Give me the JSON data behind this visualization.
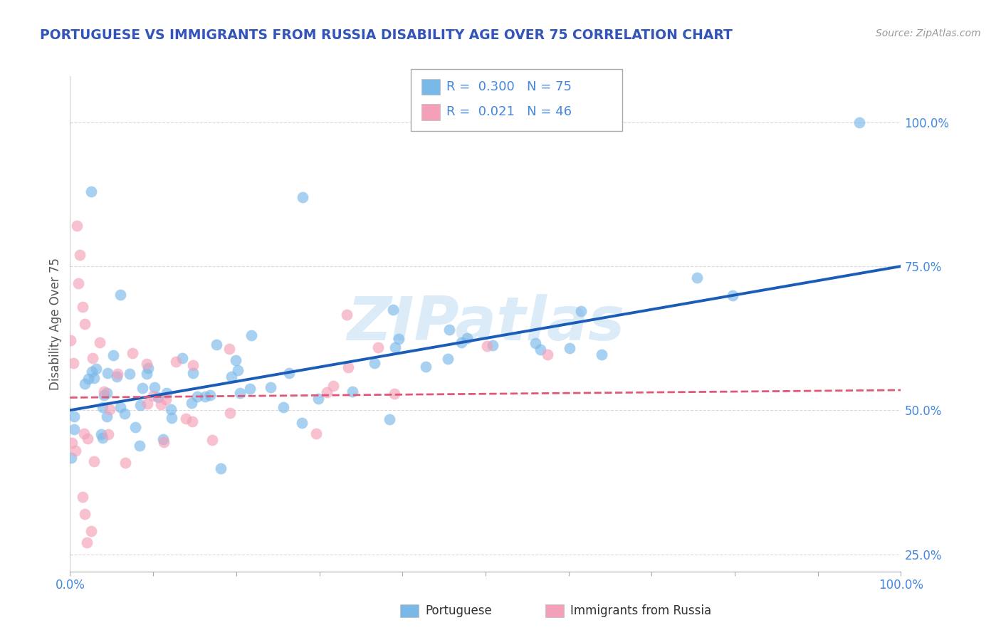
{
  "title": "PORTUGUESE VS IMMIGRANTS FROM RUSSIA DISABILITY AGE OVER 75 CORRELATION CHART",
  "source": "Source: ZipAtlas.com",
  "ylabel": "Disability Age Over 75",
  "xlim": [
    0.0,
    1.0
  ],
  "ylim": [
    0.22,
    1.08
  ],
  "y_ticks_right": [
    0.25,
    0.5,
    0.75,
    1.0
  ],
  "y_tick_labels_right": [
    "25.0%",
    "50.0%",
    "75.0%",
    "100.0%"
  ],
  "portuguese_color": "#7ab8e8",
  "russia_color": "#f4a0b8",
  "portuguese_line_color": "#1a5cb8",
  "russia_line_color": "#e05878",
  "background_color": "#ffffff",
  "grid_color": "#d0d0d0",
  "watermark": "ZIPatlas",
  "port_line_x0": 0.0,
  "port_line_y0": 0.5,
  "port_line_x1": 1.0,
  "port_line_y1": 0.75,
  "russ_line_x0": 0.0,
  "russ_line_y0": 0.522,
  "russ_line_x1": 1.0,
  "russ_line_y1": 0.535
}
